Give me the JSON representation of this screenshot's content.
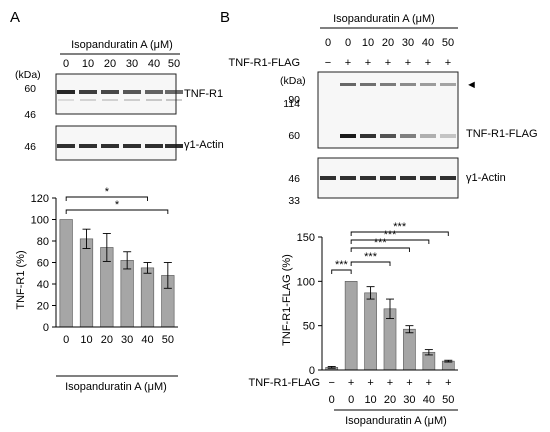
{
  "panel_a": {
    "letter": "A",
    "header": "Isopanduratin A (μM)",
    "lanes": [
      "0",
      "10",
      "20",
      "30",
      "40",
      "50"
    ],
    "kda_label": "(kDa)",
    "blot1": {
      "markers": [
        "60",
        "46"
      ],
      "label": "TNF-R1",
      "intensities": [
        1.0,
        0.82,
        0.75,
        0.63,
        0.55,
        0.48
      ]
    },
    "blot2": {
      "markers": [
        "46"
      ],
      "label": "γ1-Actin",
      "intensities": [
        1,
        1,
        1,
        1,
        1,
        1
      ]
    },
    "chart": {
      "ylabel": "TNF-R1 (%)",
      "xlabel": "Isopanduratin A (μM)",
      "ylim": [
        0,
        120
      ],
      "yticks": [
        "0",
        "20",
        "40",
        "60",
        "80",
        "100",
        "120"
      ],
      "sig": [
        {
          "from": 0,
          "to": 4,
          "label": "*"
        },
        {
          "from": 0,
          "to": 5,
          "label": "*"
        }
      ]
    }
  },
  "panel_b": {
    "letter": "B",
    "header": "Isopanduratin A (μM)",
    "lanes": [
      "0",
      "0",
      "10",
      "20",
      "30",
      "40",
      "50"
    ],
    "flag_label": "TNF-R1-FLAG",
    "flag_signs": [
      "−",
      "+",
      "+",
      "+",
      "+",
      "+",
      "+"
    ],
    "kda_label": "(kDa)",
    "blot1": {
      "markers": [
        "90",
        "114",
        "60"
      ],
      "label": "TNF-R1-FLAG",
      "arrow": "◄"
    },
    "blot2": {
      "markers": [
        "46",
        "33"
      ],
      "label": "γ1-Actin"
    },
    "chart": {
      "ylabel": "TNF-R1-FLAG (%)",
      "xlabel": "Isopanduratin A (μM)",
      "ylim": [
        0,
        150
      ],
      "yticks": [
        "0",
        "50",
        "100",
        "150"
      ],
      "row_label": "TNF-R1-FLAG",
      "signs": [
        "−",
        "+",
        "+",
        "+",
        "+",
        "+",
        "+"
      ],
      "doses": [
        "0",
        "0",
        "10",
        "20",
        "30",
        "40",
        "50"
      ],
      "sig": [
        {
          "from": 0,
          "to": 1,
          "label": "***"
        },
        {
          "from": 1,
          "to": 3,
          "label": "***"
        },
        {
          "from": 1,
          "to": 4,
          "label": "***"
        },
        {
          "from": 1,
          "to": 5,
          "label": "***"
        },
        {
          "from": 1,
          "to": 6,
          "label": "***"
        }
      ]
    }
  },
  "chart_data": [
    {
      "type": "bar",
      "categories": [
        "0",
        "10",
        "20",
        "30",
        "40",
        "50"
      ],
      "values": [
        100,
        82,
        74,
        62,
        55,
        48
      ],
      "errors": [
        0,
        9,
        13,
        8,
        5,
        12
      ],
      "title": "",
      "xlabel": "Isopanduratin A (μM)",
      "ylabel": "TNF-R1 (%)",
      "ylim": [
        0,
        120
      ]
    },
    {
      "type": "bar",
      "categories": [
        "0",
        "0",
        "10",
        "20",
        "30",
        "40",
        "50"
      ],
      "values": [
        3,
        100,
        87,
        69,
        46,
        20,
        10
      ],
      "errors": [
        1,
        0,
        7,
        11,
        4,
        3,
        1
      ],
      "title": "",
      "xlabel": "Isopanduratin A (μM)",
      "ylabel": "TNF-R1-FLAG (%)",
      "ylim": [
        0,
        150
      ]
    }
  ]
}
